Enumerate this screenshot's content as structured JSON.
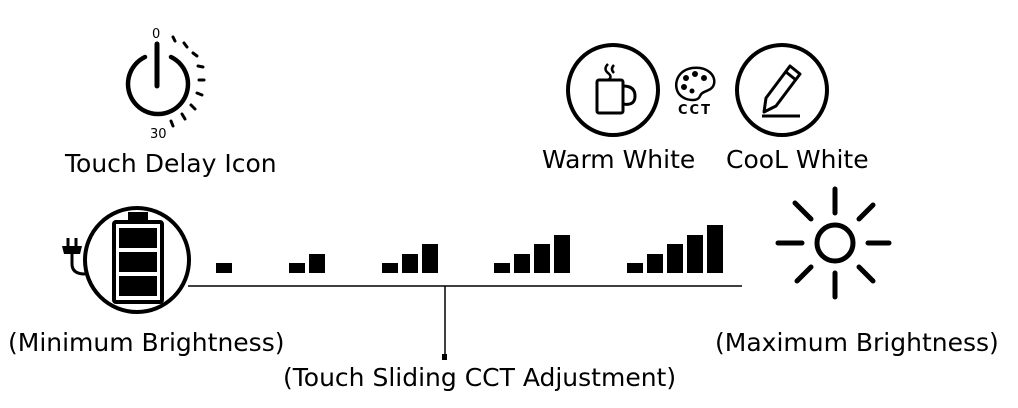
{
  "delay": {
    "label": "Touch Delay Icon",
    "dial_top": "0",
    "dial_bottom": "30"
  },
  "cct": {
    "warm_label": "Warm White",
    "cool_label": "CooL White",
    "center_label": "CCT"
  },
  "brightness": {
    "min_label": "(Minimum Brightness)",
    "max_label": "(Maximum Brightness)",
    "slide_label": "(Touch Sliding CCT Adjustment)",
    "level_bar_counts": [
      1,
      2,
      3,
      4,
      5
    ]
  },
  "icons": {
    "power": "power-icon",
    "battery": "battery-plug-icon",
    "cup": "coffee-cup-icon",
    "pencil": "pencil-icon",
    "palette": "palette-icon",
    "sun": "sun-icon"
  }
}
